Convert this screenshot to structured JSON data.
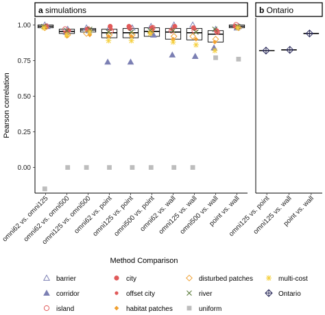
{
  "chart_data": {
    "type": "scatter",
    "ylabel": "Pearson correlation",
    "xlabel": "Method Comparison",
    "ylim": [
      -0.18,
      1.05
    ],
    "yticks": [
      "0.00",
      "0.25",
      "0.50",
      "0.75",
      "1.00"
    ],
    "grid": false,
    "legend_position": "bottom",
    "colors": {
      "barrier": "#7b7fb3",
      "corridor": "#7b7fb3",
      "island": "#e05a5a",
      "city": "#e05a5a",
      "offset_city": "#e05a5a",
      "habitat_patches": "#f0a030",
      "disturbed_patches": "#f0a030",
      "river": "#5a7a3a",
      "uniform": "#bdbdbd",
      "multi_cost": "#f5d040",
      "ontario": "#2a2a5a"
    },
    "panels": [
      {
        "id": "a",
        "strip_prefix": "a",
        "strip_label": "simulations",
        "categories": [
          "omni62 vs. omni125",
          "omni62 vs. omni500",
          "omni125 vs. omni500",
          "omni62 vs. point",
          "omni125 vs. point",
          "omni500 vs. point",
          "omni62 vs. wall",
          "omni125 vs. wall",
          "omni500 vs. wall",
          "point vs. wall"
        ],
        "boxes": [
          {
            "q1": 0.98,
            "median": 0.99,
            "q3": 1.0
          },
          {
            "q1": 0.94,
            "median": 0.955,
            "q3": 0.97
          },
          {
            "q1": 0.95,
            "median": 0.965,
            "q3": 0.975
          },
          {
            "q1": 0.91,
            "median": 0.945,
            "q3": 0.97
          },
          {
            "q1": 0.91,
            "median": 0.945,
            "q3": 0.975
          },
          {
            "q1": 0.92,
            "median": 0.955,
            "q3": 0.98
          },
          {
            "q1": 0.9,
            "median": 0.95,
            "q3": 0.975
          },
          {
            "q1": 0.895,
            "median": 0.945,
            "q3": 0.975
          },
          {
            "q1": 0.88,
            "median": 0.935,
            "q3": 0.96
          },
          {
            "q1": 0.98,
            "median": 0.99,
            "q3": 1.0
          }
        ],
        "series": [
          {
            "name": "barrier",
            "values": [
              1.0,
              0.97,
              0.98,
              0.98,
              0.98,
              0.99,
              1.0,
              1.0,
              0.97,
              0.99
            ]
          },
          {
            "name": "corridor",
            "values": [
              0.99,
              0.95,
              0.96,
              0.74,
              0.74,
              0.93,
              0.79,
              0.78,
              0.84,
              0.98
            ]
          },
          {
            "name": "island",
            "values": [
              0.99,
              0.97,
              0.97,
              0.96,
              0.98,
              0.98,
              0.96,
              0.96,
              0.95,
              1.0
            ]
          },
          {
            "name": "city",
            "values": [
              0.99,
              0.96,
              0.97,
              0.99,
              0.99,
              0.98,
              0.99,
              0.98,
              0.96,
              0.99
            ]
          },
          {
            "name": "offset city",
            "values": [
              0.98,
              0.95,
              0.96,
              0.97,
              0.97,
              0.97,
              0.97,
              0.97,
              0.95,
              0.99
            ]
          },
          {
            "name": "habitat patches",
            "values": [
              0.98,
              0.92,
              0.93,
              0.92,
              0.92,
              0.94,
              0.9,
              0.9,
              0.88,
              0.98
            ]
          },
          {
            "name": "disturbed patches",
            "values": [
              0.98,
              0.93,
              0.94,
              0.93,
              0.93,
              0.95,
              0.92,
              0.92,
              0.9,
              0.98
            ]
          },
          {
            "name": "river",
            "values": [
              0.99,
              0.96,
              0.97,
              0.95,
              0.95,
              0.96,
              0.96,
              0.95,
              0.97,
              0.99
            ]
          },
          {
            "name": "uniform",
            "values": [
              -0.15,
              0.0,
              0.0,
              0.0,
              0.0,
              0.0,
              0.0,
              0.0,
              0.77,
              0.76
            ]
          },
          {
            "name": "multi-cost",
            "values": [
              0.98,
              0.93,
              0.95,
              0.89,
              0.89,
              0.94,
              0.88,
              0.86,
              0.82,
              0.98
            ]
          }
        ]
      },
      {
        "id": "b",
        "strip_prefix": "b",
        "strip_label": "Ontario",
        "categories": [
          "omni125 vs. point",
          "omni125 vs. wall",
          "point vs. wall"
        ],
        "series": [
          {
            "name": "Ontario",
            "values": [
              0.82,
              0.825,
              0.94
            ]
          }
        ]
      }
    ],
    "legend": [
      {
        "label": "barrier",
        "shape": "triangle-open",
        "color": "#7b7fb3"
      },
      {
        "label": "city",
        "shape": "circle-filled",
        "color": "#e05a5a"
      },
      {
        "label": "disturbed patches",
        "shape": "diamond-open",
        "color": "#f0a030"
      },
      {
        "label": "multi-cost",
        "shape": "asterisk",
        "color": "#f5d040"
      },
      {
        "label": "corridor",
        "shape": "triangle-filled",
        "color": "#7b7fb3"
      },
      {
        "label": "offset city",
        "shape": "circle-small",
        "color": "#e05a5a"
      },
      {
        "label": "river",
        "shape": "x",
        "color": "#5a7a3a"
      },
      {
        "label": "Ontario",
        "shape": "diamond-cross",
        "color": "#2a2a5a"
      },
      {
        "label": "island",
        "shape": "circle-open",
        "color": "#e05a5a"
      },
      {
        "label": "habitat patches",
        "shape": "diamond-filled",
        "color": "#f0a030"
      },
      {
        "label": "uniform",
        "shape": "square-filled",
        "color": "#bdbdbd"
      }
    ]
  }
}
